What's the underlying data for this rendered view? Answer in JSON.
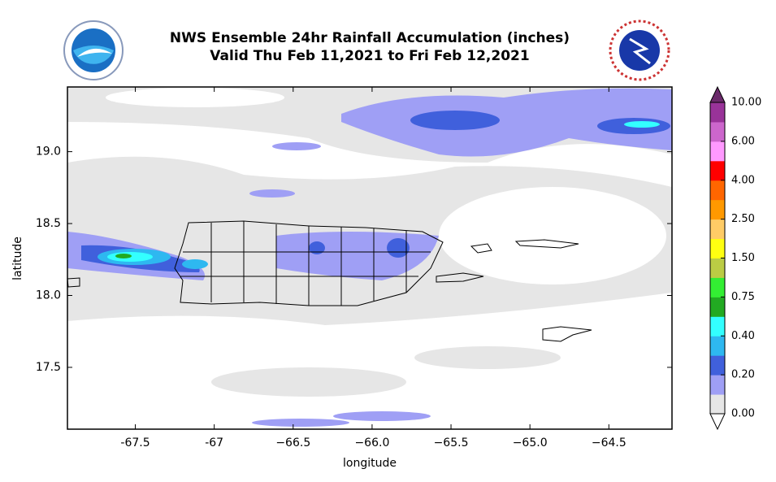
{
  "chart_data": {
    "type": "map",
    "title": "NWS Ensemble 24hr Rainfall Accumulation (inches)",
    "subtitle": "Valid Thu Feb 11,2021 to Fri Feb 12,2021",
    "x_label": "longitude",
    "y_label": "latitude",
    "xlim": [
      -67.93,
      -64.1
    ],
    "ylim": [
      17.07,
      19.45
    ],
    "xticks": [
      -67.5,
      -67.0,
      {
        "value": -66.5,
        "label": "−66.5"
      },
      {
        "value": -66.0,
        "label": "−66.0"
      },
      {
        "value": -65.5,
        "label": "−65.5"
      },
      {
        "value": -65.0,
        "label": "−65.0"
      },
      {
        "value": -64.5,
        "label": "−64.5"
      }
    ],
    "yticks": [
      17.5,
      {
        "value": 18.0,
        "label": "18.0"
      },
      18.5,
      {
        "value": 19.0,
        "label": "19.0"
      }
    ],
    "colorbar": {
      "ticks": [
        {
          "value": 0,
          "label": "0.00"
        },
        {
          "value": 0.2,
          "label": "0.20"
        },
        {
          "value": 0.4,
          "label": "0.40"
        },
        {
          "value": 0.75,
          "label": "0.75"
        },
        {
          "value": 1.5,
          "label": "1.50"
        },
        {
          "value": 2.5,
          "label": "2.50"
        },
        {
          "value": 4,
          "label": "4.00"
        },
        {
          "value": 6,
          "label": "6.00"
        },
        {
          "value": 10,
          "label": "10.00"
        }
      ],
      "colors": [
        "#e6e6e6",
        "#9f9ff5",
        "#4060dc",
        "#2eb8f0",
        "#33ffff",
        "#22aa22",
        "#33ee33",
        "#bbcc44",
        "#ffff11",
        "#ffcc66",
        "#ff9900",
        "#ff6600",
        "#ff0000",
        "#ff99ff",
        "#cc66cc",
        "#993399"
      ],
      "over_color": "#6b2a6b",
      "under_color": "#ffffff"
    }
  }
}
